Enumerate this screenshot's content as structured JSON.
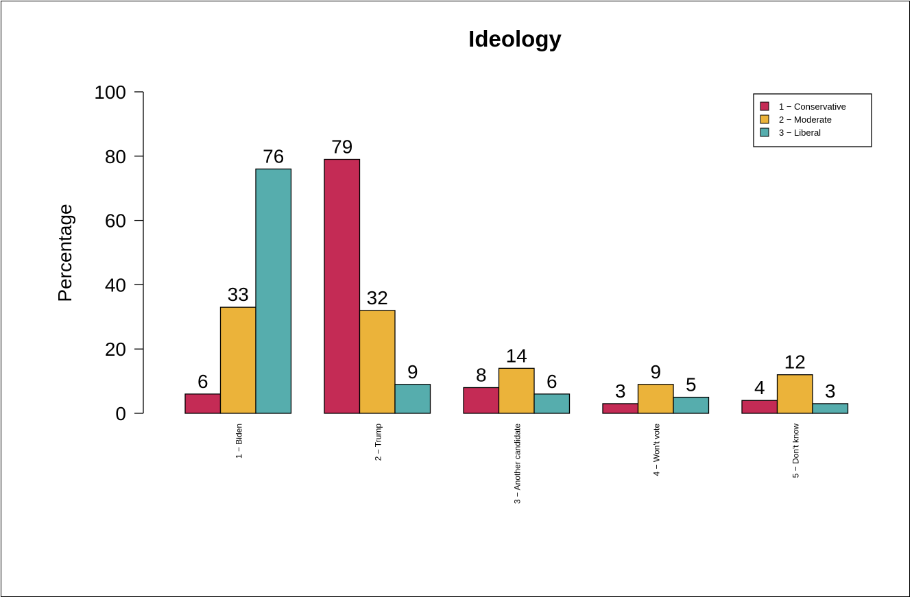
{
  "chart_data": {
    "type": "bar",
    "title": "Ideology",
    "xlabel": "",
    "ylabel": "Percentage",
    "ylim": [
      0,
      100
    ],
    "yticks": [
      "0",
      "20",
      "40",
      "60",
      "80",
      "100"
    ],
    "grid": false,
    "legend_position": "top-right",
    "categories": [
      "1 − Biden",
      "2 − Trump",
      "3 − Another candidate",
      "4 − Won't vote",
      "5 − Don't know"
    ],
    "series": [
      {
        "name": "1 − Conservative",
        "color": "#c42b55",
        "values": [
          6,
          79,
          8,
          3,
          4
        ]
      },
      {
        "name": "2 − Moderate",
        "color": "#ebb33a",
        "values": [
          33,
          32,
          14,
          9,
          12
        ]
      },
      {
        "name": "3 − Liberal",
        "color": "#56adad",
        "values": [
          76,
          9,
          6,
          5,
          3
        ]
      }
    ]
  }
}
